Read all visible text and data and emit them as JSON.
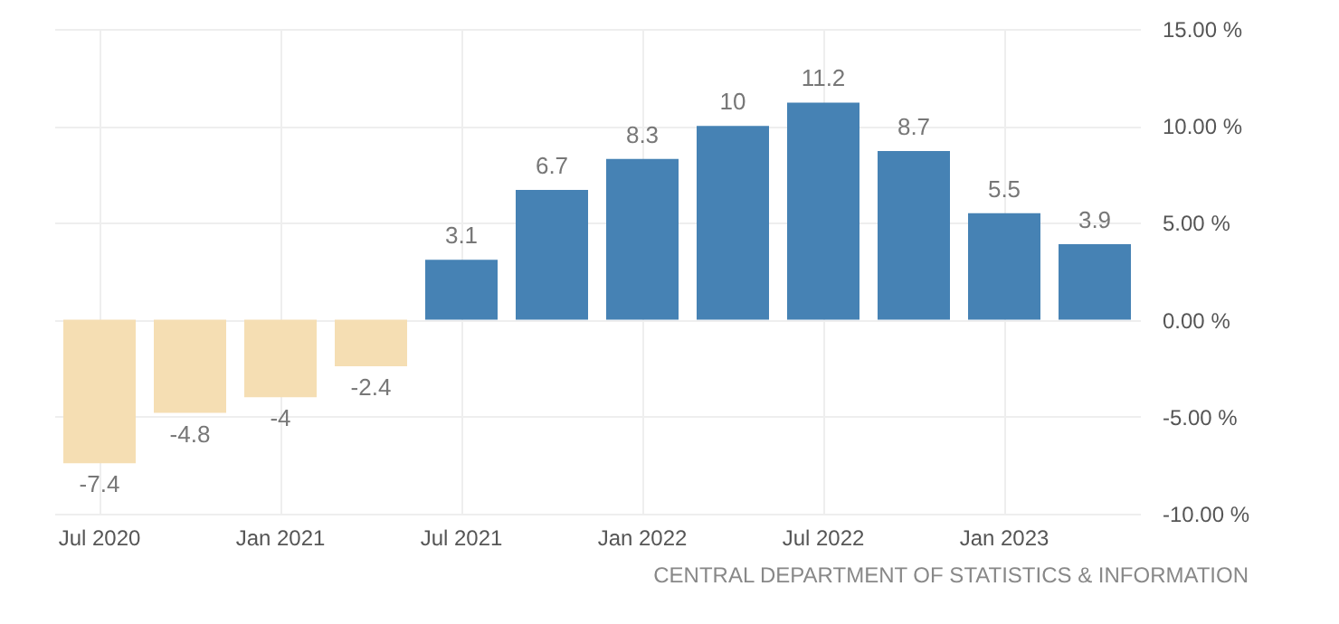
{
  "chart_data": {
    "type": "bar",
    "categories": [
      "Jul 2020",
      null,
      "Jan 2021",
      null,
      "Jul 2021",
      null,
      "Jan 2022",
      null,
      "Jul 2022",
      null,
      "Jan 2023",
      null
    ],
    "values": [
      -7.4,
      -4.8,
      -4,
      -2.4,
      3.1,
      6.7,
      8.3,
      10,
      11.2,
      8.7,
      5.5,
      3.9
    ],
    "colors": [
      "#f5deb3",
      "#f5deb3",
      "#f5deb3",
      "#f5deb3",
      "#4682b4",
      "#4682b4",
      "#4682b4",
      "#4682b4",
      "#4682b4",
      "#4682b4",
      "#4682b4",
      "#4682b4"
    ],
    "ylim": [
      -10,
      15
    ],
    "yticks": [
      {
        "value": -10,
        "label": "-10.00 %"
      },
      {
        "value": -5,
        "label": "-5.00 %"
      },
      {
        "value": 0,
        "label": "0.00 %"
      },
      {
        "value": 5,
        "label": "5.00 %"
      },
      {
        "value": 10,
        "label": "10.00 %"
      },
      {
        "value": 15,
        "label": "15.00 %"
      }
    ],
    "grid": true,
    "data_labels": true,
    "annotations": [
      "CENTRAL DEPARTMENT OF STATISTICS & INFORMATION"
    ]
  }
}
